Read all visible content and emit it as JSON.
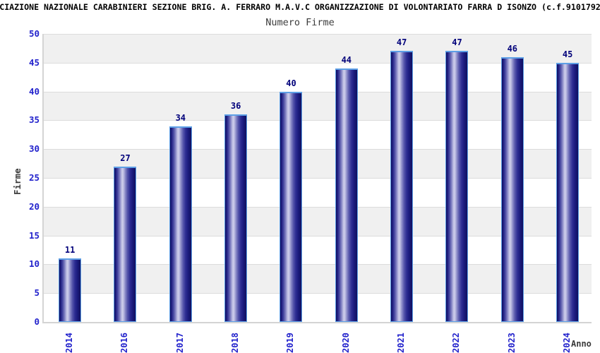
{
  "header": {
    "title": "CIAZIONE NAZIONALE CARABINIERI SEZIONE BRIG. A. FERRARO M.A.V.C ORGANIZZAZIONE DI VOLONTARIATO FARRA D ISONZO (c.f.9101792",
    "subtitle": "Numero Firme"
  },
  "chart_data": {
    "type": "bar",
    "title": "Numero Firme",
    "categories": [
      "2014",
      "2016",
      "2017",
      "2018",
      "2019",
      "2020",
      "2021",
      "2022",
      "2023",
      "2024"
    ],
    "values": [
      11,
      27,
      34,
      36,
      40,
      44,
      47,
      47,
      46,
      45
    ],
    "xlabel": "Anno",
    "ylabel": "Firme",
    "ylim": [
      0,
      50
    ],
    "yticks": [
      0,
      5,
      10,
      15,
      20,
      25,
      30,
      35,
      40,
      45,
      50
    ],
    "grid": "horizontal alternating bands, gray above even multiples of 5",
    "legend_position": "none",
    "value_labels": "above each bar"
  },
  "colors": {
    "bar_dark": "#10105f",
    "bar_highlight": "#cfcfec",
    "bar_border": "#5d9fe6",
    "tick_label": "#2222cc",
    "value_label": "#00007a",
    "axis_text": "#3a3a3a",
    "title_text": "#000000",
    "band_gray": "#f0f0f0",
    "band_white": "#ffffff",
    "gridline": "#dcdcdc",
    "axis_line": "#d4d4d4",
    "background": "#ffffff"
  }
}
